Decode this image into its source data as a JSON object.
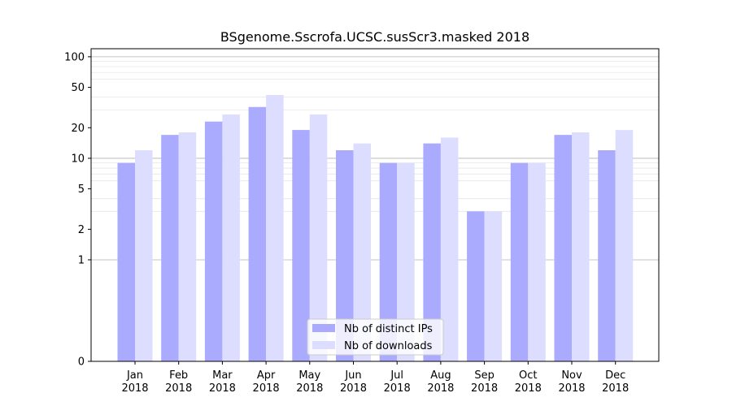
{
  "chart_data": {
    "type": "bar",
    "title": "BSgenome.Sscrofa.UCSC.susScr3.masked 2018",
    "xlabel": "",
    "ylabel": "",
    "y_scale": "symlog",
    "ylim": [
      0,
      120
    ],
    "y_ticks": [
      0,
      1,
      2,
      5,
      10,
      20,
      50,
      100
    ],
    "y_tick_labels": [
      "0",
      "1",
      "2",
      "5",
      "10",
      "20",
      "50",
      "100"
    ],
    "grid": "horizontal",
    "legend_position": "bottom-center",
    "categories": [
      [
        "Jan",
        "2018"
      ],
      [
        "Feb",
        "2018"
      ],
      [
        "Mar",
        "2018"
      ],
      [
        "Apr",
        "2018"
      ],
      [
        "May",
        "2018"
      ],
      [
        "Jun",
        "2018"
      ],
      [
        "Jul",
        "2018"
      ],
      [
        "Aug",
        "2018"
      ],
      [
        "Sep",
        "2018"
      ],
      [
        "Oct",
        "2018"
      ],
      [
        "Nov",
        "2018"
      ],
      [
        "Dec",
        "2018"
      ]
    ],
    "series": [
      {
        "name": "Nb of distinct IPs",
        "color": "#aaaaff",
        "values": [
          9,
          17,
          23,
          32,
          19,
          12,
          9,
          14,
          3,
          9,
          17,
          12
        ]
      },
      {
        "name": "Nb of downloads",
        "color": "#ddddff",
        "values": [
          12,
          18,
          27,
          42,
          27,
          14,
          9,
          16,
          3,
          9,
          18,
          19
        ]
      }
    ]
  }
}
